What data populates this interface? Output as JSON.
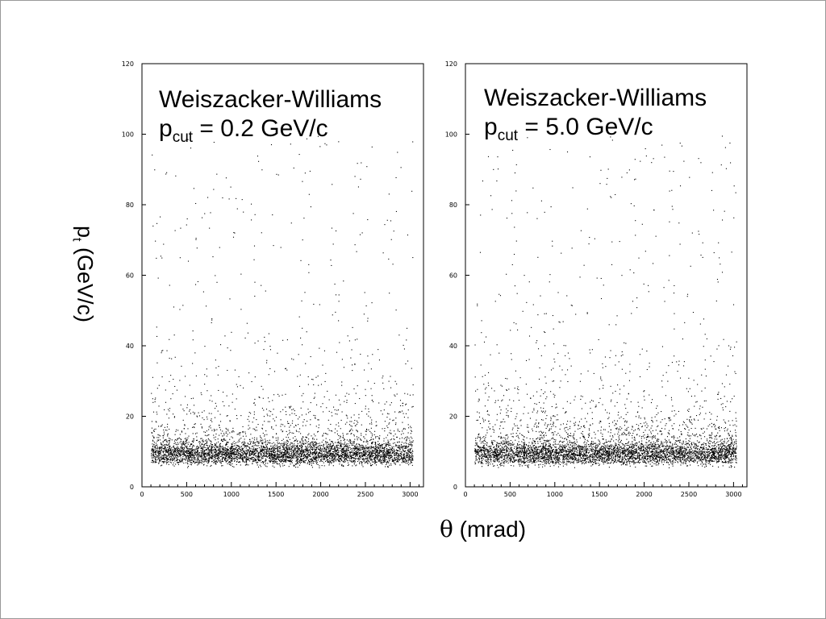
{
  "chart_data": [
    {
      "type": "scatter",
      "annotation": {
        "line1": "Weiszacker-Williams",
        "p_symbol": "p",
        "p_subscript": "cut",
        "p_value": " = 0.2 GeV/c"
      },
      "xlim": [
        0,
        3150
      ],
      "ylim": [
        0,
        120
      ],
      "xticks": [
        0,
        500,
        1000,
        1500,
        2000,
        2500,
        3000
      ],
      "yticks": [
        0,
        20,
        40,
        60,
        80,
        100,
        120
      ],
      "x_data_range": [
        100,
        3030
      ],
      "points_note": "dense band at y ~ 7-13 across full x range, density falling with y up to ~100",
      "grid": false,
      "legend": "none"
    },
    {
      "type": "scatter",
      "annotation": {
        "line1": "Weiszacker-Williams",
        "p_symbol": "p",
        "p_subscript": "cut",
        "p_value": " = 5.0 GeV/c"
      },
      "xlim": [
        0,
        3150
      ],
      "ylim": [
        0,
        120
      ],
      "xticks": [
        0,
        500,
        1000,
        1500,
        2000,
        2500,
        3000
      ],
      "yticks": [
        0,
        20,
        40,
        60,
        80,
        100,
        120
      ],
      "x_data_range": [
        100,
        3030
      ],
      "points_note": "dense band at y ~ 7-13 across full x range, density falling with y up to ~100",
      "grid": false,
      "legend": "none"
    }
  ],
  "ylabel": {
    "symbol": "p",
    "subscript": "t",
    "rest": " (GeV/c)"
  },
  "xlabel": {
    "symbol": "θ",
    "rest": " (mrad)"
  }
}
